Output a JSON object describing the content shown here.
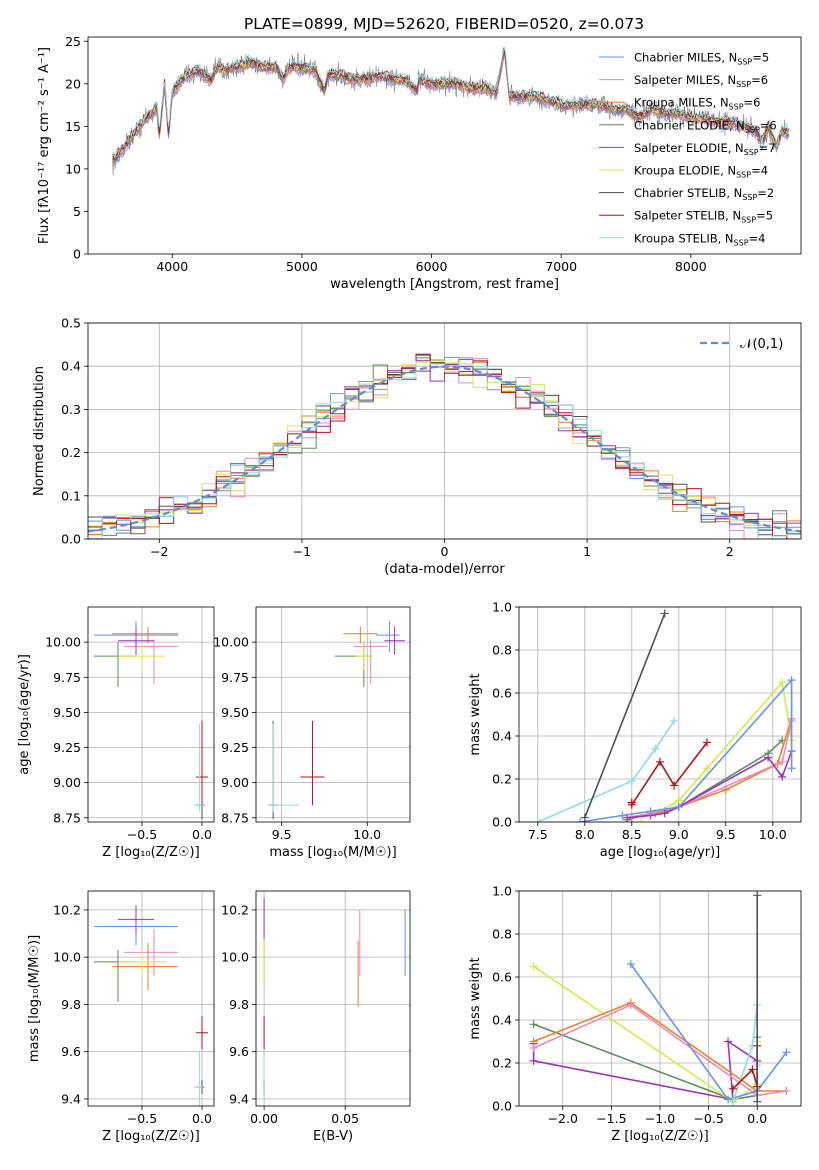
{
  "figure": {
    "title": "PLATE=0899, MJD=52620, FIBERID=0520, z=0.073"
  },
  "series": [
    {
      "name": "Chabrier MILES, N_SSP=5",
      "imf": "Chabrier",
      "lib": "MILES",
      "n_ssp": "5",
      "color": "#6495ed"
    },
    {
      "name": "Salpeter MILES, N_SSP=6",
      "imf": "Salpeter",
      "lib": "MILES",
      "n_ssp": "6",
      "color": "#e78ac3"
    },
    {
      "name": "Kroupa MILES, N_SSP=6",
      "imf": "Kroupa",
      "lib": "MILES",
      "n_ssp": "6",
      "color": "#f07e26"
    },
    {
      "name": "Chabrier ELODIE, N_SSP=6",
      "imf": "Chabrier",
      "lib": "ELODIE",
      "n_ssp": "6",
      "color": "#5b8f5b"
    },
    {
      "name": "Salpeter ELODIE, N_SSP=7",
      "imf": "Salpeter",
      "lib": "ELODIE",
      "n_ssp": "7",
      "color": "#9e34b8"
    },
    {
      "name": "Kroupa ELODIE, N_SSP=4",
      "imf": "Kroupa",
      "lib": "ELODIE",
      "n_ssp": "4",
      "color": "#d5ea47"
    },
    {
      "name": "Chabrier STELIB, N_SSP=2",
      "imf": "Chabrier",
      "lib": "STELIB",
      "n_ssp": "2",
      "color": "#505050"
    },
    {
      "name": "Salpeter STELIB, N_SSP=5",
      "imf": "Salpeter",
      "lib": "STELIB",
      "n_ssp": "5",
      "color": "#b5121b"
    },
    {
      "name": "Kroupa STELIB, N_SSP=4",
      "imf": "Kroupa",
      "lib": "STELIB",
      "n_ssp": "4",
      "color": "#8fdbe0"
    }
  ],
  "chart_data": [
    {
      "id": "spectrum",
      "type": "line",
      "xlabel": "wavelength [Angstrom, rest frame]",
      "ylabel": "Flux [fλ10⁻¹⁷ erg cm⁻² s⁻¹ A⁻¹]",
      "xlim": [
        3350,
        8850
      ],
      "ylim": [
        0,
        25.5
      ],
      "xticks": [
        4000,
        5000,
        6000,
        7000,
        8000
      ],
      "yticks": [
        0,
        5,
        10,
        15,
        20,
        25
      ],
      "data_color": "#808080",
      "data": {
        "x": [
          3550,
          3600,
          3650,
          3700,
          3750,
          3800,
          3850,
          3880,
          3900,
          3940,
          3970,
          4000,
          4050,
          4100,
          4200,
          4300,
          4350,
          4400,
          4500,
          4600,
          4700,
          4800,
          4861,
          4900,
          5000,
          5100,
          5175,
          5200,
          5300,
          5400,
          5500,
          5600,
          5700,
          5800,
          5890,
          5900,
          6000,
          6100,
          6200,
          6300,
          6400,
          6500,
          6563,
          6600,
          6700,
          6800,
          6900,
          7000,
          7100,
          7200,
          7300,
          7400,
          7500,
          7600,
          7700,
          7800,
          7900,
          8000,
          8100,
          8200,
          8300,
          8400,
          8500,
          8550,
          8600,
          8662,
          8700,
          8800
        ],
        "y": [
          11,
          12,
          13,
          14,
          15,
          16,
          16.5,
          17.5,
          14,
          20,
          14,
          19,
          20,
          21,
          21.5,
          20.5,
          22,
          21.5,
          22,
          22.5,
          22,
          22,
          20.5,
          22,
          22,
          21.5,
          19,
          21,
          21,
          20.5,
          20.5,
          21,
          20.5,
          20.5,
          19,
          20.5,
          20,
          20,
          20,
          19.5,
          19.5,
          19,
          24,
          18.5,
          18.5,
          18.5,
          18,
          17.5,
          17.5,
          17.5,
          17.5,
          17,
          17,
          16,
          17,
          16.5,
          16.5,
          16,
          16,
          15.5,
          15.5,
          15,
          14.5,
          13,
          15,
          12.5,
          14.5,
          14
        ]
      },
      "legend": {
        "placement": "top-right"
      }
    },
    {
      "id": "residuals",
      "type": "step-histogram",
      "xlabel": "(data-model)/error",
      "ylabel": "Normed distribution",
      "xlim": [
        -2.5,
        2.5
      ],
      "ylim": [
        0,
        0.5
      ],
      "xticks": [
        -2,
        -1,
        0,
        1,
        2
      ],
      "yticks": [
        0,
        0.1,
        0.2,
        0.3,
        0.4,
        0.5
      ],
      "bins": {
        "start": -2.5,
        "step": 0.1,
        "count": 50
      },
      "reference": {
        "name": "𝒩(0,1)",
        "color": "#5a8fd6"
      },
      "legend": {
        "placement": "top-right"
      }
    },
    {
      "id": "age_vs_Z",
      "type": "errorbar",
      "xlabel": "Z [log₁₀(Z/Z☉)]",
      "ylabel": "age  [log₁₀(age/yr)]",
      "xlim": [
        -0.95,
        0.1
      ],
      "ylim": [
        8.72,
        10.25
      ],
      "xticks": [
        -0.5,
        0
      ],
      "yticks": [
        8.75,
        9.0,
        9.25,
        9.5,
        9.75,
        10.0
      ],
      "points": [
        {
          "s": 0,
          "x": -0.55,
          "xerr": [
            0.35,
            0.35
          ],
          "y": 10.05,
          "yerr": [
            0.12,
            0.1
          ]
        },
        {
          "s": 1,
          "x": -0.4,
          "xerr": [
            0.25,
            0.2
          ],
          "y": 9.97,
          "yerr": [
            0.27,
            0.05
          ]
        },
        {
          "s": 2,
          "x": -0.45,
          "xerr": [
            0.3,
            0.25
          ],
          "y": 10.06,
          "yerr": [
            0.07,
            0.05
          ]
        },
        {
          "s": 3,
          "x": -0.7,
          "xerr": [
            0.2,
            0.15
          ],
          "y": 9.9,
          "yerr": [
            0.22,
            0.1
          ]
        },
        {
          "s": 4,
          "x": -0.55,
          "xerr": [
            0.15,
            0.15
          ],
          "y": 10.01,
          "yerr": [
            0.1,
            0.1
          ]
        },
        {
          "s": 5,
          "x": -0.5,
          "xerr": [
            0.2,
            0.2
          ],
          "y": 9.9,
          "yerr": [
            0.1,
            0.1
          ]
        },
        {
          "s": 6,
          "x": 0.0,
          "xerr": [
            0.05,
            0.02
          ],
          "y": 8.84,
          "yerr": [
            0.1,
            0.6
          ]
        },
        {
          "s": 7,
          "x": 0.0,
          "xerr": [
            0.05,
            0.05
          ],
          "y": 9.04,
          "yerr": [
            0.2,
            0.4
          ]
        },
        {
          "s": 8,
          "x": -0.02,
          "xerr": [
            0.05,
            0.03
          ],
          "y": 8.84,
          "yerr": [
            0.05,
            0.58
          ]
        }
      ]
    },
    {
      "id": "age_vs_mass",
      "type": "errorbar",
      "xlabel": "mass [log₁₀(M/M☉)]",
      "ylabel": "",
      "xlim": [
        9.35,
        10.25
      ],
      "ylim": [
        8.72,
        10.25
      ],
      "xticks": [
        9.5,
        10.0
      ],
      "yticks": [
        8.75,
        9.0,
        9.25,
        9.5,
        9.75,
        10.0
      ],
      "points": [
        {
          "s": 0,
          "x": 10.13,
          "xerr": [
            0.08,
            0.06
          ],
          "y": 10.05,
          "yerr": [
            0.12,
            0.1
          ]
        },
        {
          "s": 1,
          "x": 10.02,
          "xerr": [
            0.1,
            0.1
          ],
          "y": 9.97,
          "yerr": [
            0.27,
            0.05
          ]
        },
        {
          "s": 2,
          "x": 9.96,
          "xerr": [
            0.1,
            0.1
          ],
          "y": 10.06,
          "yerr": [
            0.07,
            0.05
          ]
        },
        {
          "s": 3,
          "x": 9.98,
          "xerr": [
            0.17,
            0.05
          ],
          "y": 9.9,
          "yerr": [
            0.22,
            0.1
          ]
        },
        {
          "s": 4,
          "x": 10.16,
          "xerr": [
            0.06,
            0.06
          ],
          "y": 10.01,
          "yerr": [
            0.1,
            0.1
          ]
        },
        {
          "s": 5,
          "x": 9.98,
          "xerr": [
            0.05,
            0.05
          ],
          "y": 9.9,
          "yerr": [
            0.1,
            0.1
          ]
        },
        {
          "s": 6,
          "x": 9.45,
          "xerr": [
            0.03,
            0.03
          ],
          "y": 8.84,
          "yerr": [
            0.1,
            0.6
          ]
        },
        {
          "s": 7,
          "x": 9.68,
          "xerr": [
            0.07,
            0.07
          ],
          "y": 9.04,
          "yerr": [
            0.2,
            0.4
          ]
        },
        {
          "s": 8,
          "x": 9.45,
          "xerr": [
            0.03,
            0.15
          ],
          "y": 8.84,
          "yerr": [
            0.05,
            0.58
          ]
        }
      ]
    },
    {
      "id": "mass_weight_vs_age",
      "type": "line",
      "xlabel": "age  [log₁₀(age/yr)]",
      "ylabel": "mass weight",
      "xlim": [
        7.3,
        10.3
      ],
      "ylim": [
        0,
        1
      ],
      "xticks": [
        7.5,
        8.0,
        8.5,
        9.0,
        9.5,
        10.0
      ],
      "yticks": [
        0,
        0.2,
        0.4,
        0.6,
        0.8,
        1.0
      ],
      "lines": [
        {
          "s": 3,
          "x": [
            8.45,
            8.7,
            8.85,
            9.0,
            9.95,
            10.1
          ],
          "y": [
            0.01,
            0.04,
            0.05,
            0.07,
            0.32,
            0.38
          ]
        },
        {
          "s": 5,
          "x": [
            8.6,
            8.8,
            9.0,
            9.3,
            10.1,
            10.2
          ],
          "y": [
            0.02,
            0.05,
            0.1,
            0.25,
            0.65,
            0.38
          ]
        },
        {
          "s": 2,
          "x": [
            8.5,
            8.75,
            9.0,
            9.5,
            10.05,
            10.2
          ],
          "y": [
            0.02,
            0.04,
            0.07,
            0.15,
            0.27,
            0.48
          ]
        },
        {
          "s": 1,
          "x": [
            8.45,
            8.7,
            9.0,
            10.1,
            10.2,
            10.2
          ],
          "y": [
            0.02,
            0.04,
            0.07,
            0.28,
            0.47,
            0.48
          ]
        },
        {
          "s": 4,
          "x": [
            8.45,
            8.7,
            8.85,
            9.0,
            9.95,
            10.1,
            10.2
          ],
          "y": [
            0.02,
            0.03,
            0.04,
            0.07,
            0.3,
            0.21,
            0.33
          ]
        },
        {
          "s": 0,
          "x": [
            7.95,
            8.4,
            8.7,
            9.0,
            10.2,
            10.2
          ],
          "y": [
            0,
            0.03,
            0.05,
            0.07,
            0.66,
            0.25
          ]
        },
        {
          "s": 8,
          "x": [
            7.5,
            8.5,
            8.75,
            8.95
          ],
          "y": [
            0,
            0.19,
            0.34,
            0.47
          ]
        },
        {
          "s": 7,
          "x": [
            8.5,
            8.5,
            8.8,
            8.95,
            9.3
          ],
          "y": [
            0.09,
            0.08,
            0.28,
            0.17,
            0.37
          ]
        },
        {
          "s": 6,
          "x": [
            8.0,
            8.85
          ],
          "y": [
            0.02,
            0.97
          ]
        }
      ]
    },
    {
      "id": "mass_vs_Z",
      "type": "errorbar",
      "xlabel": "Z [log₁₀(Z/Z☉)]",
      "ylabel": "mass [log₁₀(M/M☉)]",
      "xlim": [
        -0.95,
        0.1
      ],
      "ylim": [
        9.37,
        10.28
      ],
      "xticks": [
        -0.5,
        0
      ],
      "yticks": [
        9.4,
        9.6,
        9.8,
        10.0,
        10.2
      ],
      "points": [
        {
          "s": 0,
          "x": -0.55,
          "xerr": [
            0.35,
            0.35
          ],
          "y": 10.13,
          "yerr": [
            0.08,
            0.06
          ]
        },
        {
          "s": 1,
          "x": -0.4,
          "xerr": [
            0.25,
            0.2
          ],
          "y": 10.02,
          "yerr": [
            0.1,
            0.1
          ]
        },
        {
          "s": 2,
          "x": -0.45,
          "xerr": [
            0.3,
            0.25
          ],
          "y": 9.96,
          "yerr": [
            0.1,
            0.1
          ]
        },
        {
          "s": 3,
          "x": -0.7,
          "xerr": [
            0.2,
            0.15
          ],
          "y": 9.98,
          "yerr": [
            0.17,
            0.05
          ]
        },
        {
          "s": 4,
          "x": -0.55,
          "xerr": [
            0.15,
            0.15
          ],
          "y": 10.16,
          "yerr": [
            0.06,
            0.06
          ]
        },
        {
          "s": 5,
          "x": -0.5,
          "xerr": [
            0.2,
            0.2
          ],
          "y": 9.98,
          "yerr": [
            0.05,
            0.05
          ]
        },
        {
          "s": 6,
          "x": 0.0,
          "xerr": [
            0.05,
            0.02
          ],
          "y": 9.45,
          "yerr": [
            0.03,
            0.03
          ]
        },
        {
          "s": 7,
          "x": 0.0,
          "xerr": [
            0.05,
            0.05
          ],
          "y": 9.68,
          "yerr": [
            0.07,
            0.07
          ]
        },
        {
          "s": 8,
          "x": -0.02,
          "xerr": [
            0.05,
            0.03
          ],
          "y": 9.45,
          "yerr": [
            0.15,
            0.15
          ]
        }
      ]
    },
    {
      "id": "mass_vs_ebv",
      "type": "errorbar",
      "xlabel": "E(B-V)",
      "ylabel": "",
      "xlim": [
        -0.005,
        0.09
      ],
      "ylim": [
        9.37,
        10.28
      ],
      "xticks": [
        0.0,
        0.05
      ],
      "yticks": [
        9.4,
        9.6,
        9.8,
        10.0,
        10.2
      ],
      "points": [
        {
          "s": 0,
          "x": 0.087,
          "xerr": [
            0,
            0
          ],
          "y": 10.06,
          "yerr": [
            0.14,
            0.14
          ]
        },
        {
          "s": 1,
          "x": 0.059,
          "xerr": [
            0,
            0
          ],
          "y": 10.06,
          "yerr": [
            0.14,
            0.14
          ]
        },
        {
          "s": 2,
          "x": 0.058,
          "xerr": [
            0,
            0
          ],
          "y": 9.93,
          "yerr": [
            0.14,
            0.14
          ]
        },
        {
          "s": 3,
          "x": 0.0,
          "xerr": [
            0,
            0
          ],
          "y": 9.98,
          "yerr": [
            0.1,
            0.1
          ]
        },
        {
          "s": 4,
          "x": 0.0,
          "xerr": [
            0,
            0
          ],
          "y": 10.16,
          "yerr": [
            0.09,
            0.09
          ]
        },
        {
          "s": 5,
          "x": 0.0,
          "xerr": [
            0,
            0
          ],
          "y": 9.98,
          "yerr": [
            0.1,
            0.1
          ]
        },
        {
          "s": 6,
          "x": 0.0,
          "xerr": [
            0,
            0
          ],
          "y": 9.45,
          "yerr": [
            0.03,
            0.03
          ]
        },
        {
          "s": 7,
          "x": 0.0,
          "xerr": [
            0,
            0
          ],
          "y": 9.68,
          "yerr": [
            0.07,
            0.07
          ]
        },
        {
          "s": 8,
          "x": 0.0,
          "xerr": [
            0,
            0
          ],
          "y": 9.5,
          "yerr": [
            0.1,
            0.1
          ]
        }
      ]
    },
    {
      "id": "mass_weight_vs_Z",
      "type": "line",
      "xlabel": "Z [log₁₀(Z/Z☉)]",
      "ylabel": "mass weight",
      "xlim": [
        -2.45,
        0.45
      ],
      "ylim": [
        0,
        1
      ],
      "xticks": [
        -2.0,
        -1.5,
        -1.0,
        -0.5,
        0.0
      ],
      "yticks": [
        0,
        0.2,
        0.4,
        0.6,
        0.8,
        1.0
      ],
      "lines": [
        {
          "s": 4,
          "x": [
            -2.3,
            -2.3,
            -0.25,
            -0.3,
            0.0,
            0.0
          ],
          "y": [
            0.29,
            0.21,
            0.03,
            0.3,
            0.21,
            0.07
          ]
        },
        {
          "s": 3,
          "x": [
            -2.3,
            -0.25,
            0.0,
            0.0
          ],
          "y": [
            0.38,
            0.03,
            0.05,
            0.32
          ]
        },
        {
          "s": 5,
          "x": [
            -2.3,
            -0.25,
            0.0,
            0.0
          ],
          "y": [
            0.65,
            0.02,
            0.1,
            0.3
          ]
        },
        {
          "s": 2,
          "x": [
            -2.3,
            -1.3,
            0.0,
            0.3
          ],
          "y": [
            0.3,
            0.48,
            0.07,
            0.07
          ]
        },
        {
          "s": 1,
          "x": [
            -2.3,
            -1.3,
            0.0,
            0.3
          ],
          "y": [
            0.27,
            0.47,
            0.05,
            0.07
          ]
        },
        {
          "s": 0,
          "x": [
            -1.3,
            -0.3,
            0.0,
            0.3
          ],
          "y": [
            0.66,
            0.03,
            0.07,
            0.25
          ]
        },
        {
          "s": 8,
          "x": [
            -0.25,
            -0.05,
            0.0,
            0.0
          ],
          "y": [
            0.02,
            0.28,
            0.47,
            0.19
          ]
        },
        {
          "s": 7,
          "x": [
            -0.25,
            -0.05,
            0.0,
            0.0
          ],
          "y": [
            0.08,
            0.17,
            0.09,
            0.28
          ]
        },
        {
          "s": 6,
          "x": [
            0.0,
            0.0
          ],
          "y": [
            0.02,
            0.98
          ]
        }
      ]
    }
  ]
}
